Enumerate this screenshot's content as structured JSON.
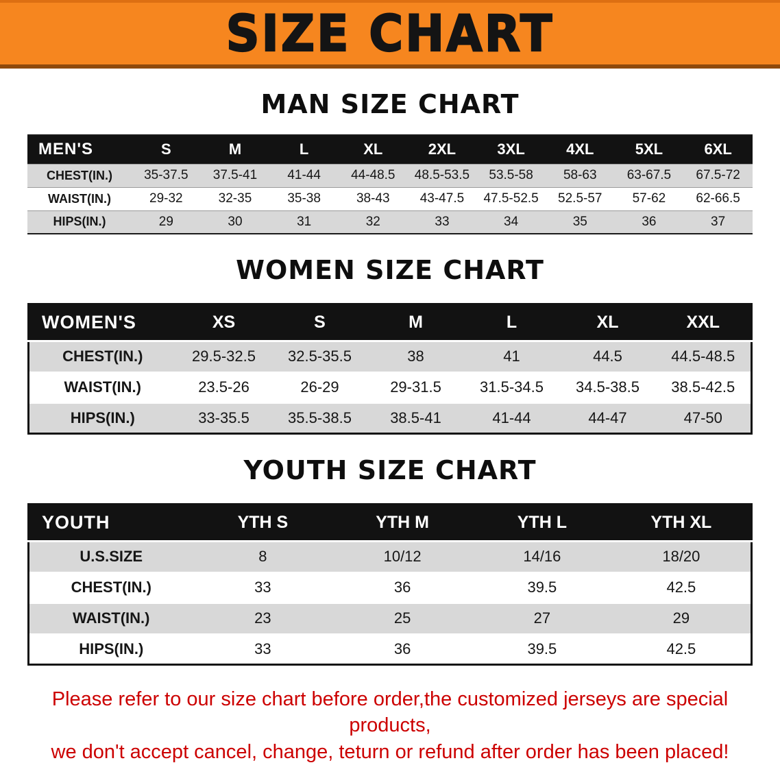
{
  "banner": {
    "title": "SIZE CHART"
  },
  "colors": {
    "banner_bg": "#F6861F",
    "banner_border_bottom": "#8F4A0C",
    "table_header_bg": "#121212",
    "table_header_text": "#FFFFFF",
    "row_gray": "#D8D8D8",
    "row_white": "#FFFFFF",
    "note_red": "#CC0000"
  },
  "sections": [
    {
      "heading": "MAN SIZE CHART",
      "table": {
        "header": [
          "MEN'S",
          "S",
          "M",
          "L",
          "XL",
          "2XL",
          "3XL",
          "4XL",
          "5XL",
          "6XL"
        ],
        "rows": [
          {
            "label": "CHEST(IN.)",
            "values": [
              "35-37.5",
              "37.5-41",
              "41-44",
              "44-48.5",
              "48.5-53.5",
              "53.5-58",
              "58-63",
              "63-67.5",
              "67.5-72"
            ]
          },
          {
            "label": "WAIST(IN.)",
            "values": [
              "29-32",
              "32-35",
              "35-38",
              "38-43",
              "43-47.5",
              "47.5-52.5",
              "52.5-57",
              "57-62",
              "62-66.5"
            ]
          },
          {
            "label": "HIPS(IN.)",
            "values": [
              "29",
              "30",
              "31",
              "32",
              "33",
              "34",
              "35",
              "36",
              "37"
            ]
          }
        ]
      }
    },
    {
      "heading": "WOMEN SIZE CHART",
      "table": {
        "header": [
          "WOMEN'S",
          "XS",
          "S",
          "M",
          "L",
          "XL",
          "XXL"
        ],
        "rows": [
          {
            "label": "CHEST(IN.)",
            "values": [
              "29.5-32.5",
              "32.5-35.5",
              "38",
              "41",
              "44.5",
              "44.5-48.5"
            ]
          },
          {
            "label": "WAIST(IN.)",
            "values": [
              "23.5-26",
              "26-29",
              "29-31.5",
              "31.5-34.5",
              "34.5-38.5",
              "38.5-42.5"
            ]
          },
          {
            "label": "HIPS(IN.)",
            "values": [
              "33-35.5",
              "35.5-38.5",
              "38.5-41",
              "41-44",
              "44-47",
              "47-50"
            ]
          }
        ]
      }
    },
    {
      "heading": "YOUTH SIZE CHART",
      "table": {
        "header": [
          "YOUTH",
          "YTH S",
          "YTH M",
          "YTH L",
          "YTH XL"
        ],
        "rows": [
          {
            "label": "U.S.SIZE",
            "values": [
              "8",
              "10/12",
              "14/16",
              "18/20"
            ]
          },
          {
            "label": "CHEST(IN.)",
            "values": [
              "33",
              "36",
              "39.5",
              "42.5"
            ]
          },
          {
            "label": "WAIST(IN.)",
            "values": [
              "23",
              "25",
              "27",
              "29"
            ]
          },
          {
            "label": "HIPS(IN.)",
            "values": [
              "33",
              "36",
              "39.5",
              "42.5"
            ]
          }
        ]
      }
    }
  ],
  "footnote": {
    "line1": "Please refer to our size chart before order,the customized jerseys are special products,",
    "line2": "we don't accept cancel, change, teturn or refund after order has been placed!"
  }
}
